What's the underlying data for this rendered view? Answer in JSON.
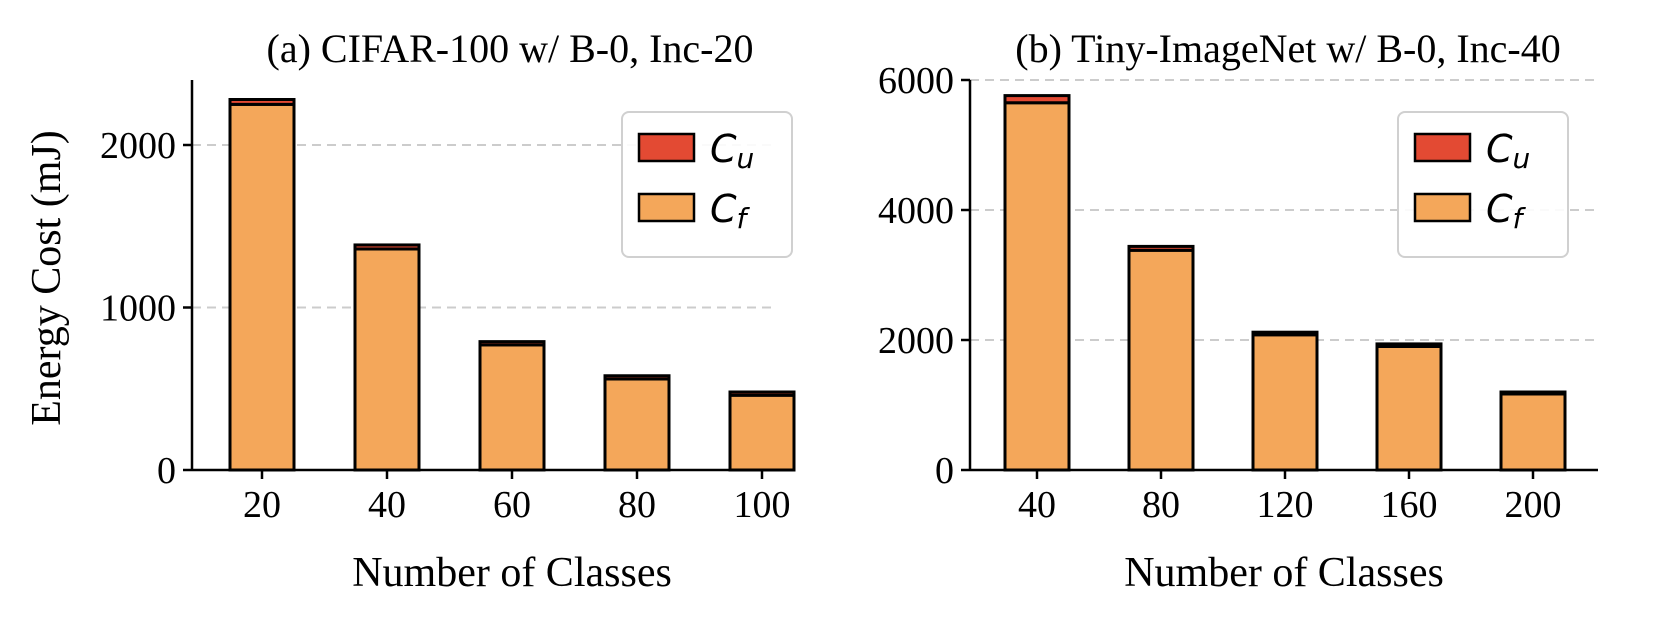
{
  "colors": {
    "Cu": "#e34a33",
    "Cf": "#f4a75a",
    "edge": "#000000",
    "grid": "#cccccc"
  },
  "legend": [
    {
      "key": "Cu",
      "main": "C",
      "sub": "u"
    },
    {
      "key": "Cf",
      "main": "C",
      "sub": "f"
    }
  ],
  "chart_data": [
    {
      "type": "bar",
      "stacked": true,
      "title": "(a) CIFAR-100 w/ B-0, Inc-20",
      "xlabel": "Number of Classes",
      "ylabel": "Energy Cost (mJ)",
      "categories": [
        "20",
        "40",
        "60",
        "80",
        "100"
      ],
      "ylim": [
        0,
        2400
      ],
      "yticks": [
        0,
        1000,
        2000
      ],
      "grid": "y-dashed",
      "legend_position": "top-right",
      "series": [
        {
          "name": "Cf",
          "values": [
            2250,
            1360,
            770,
            560,
            460
          ]
        },
        {
          "name": "Cu",
          "values": [
            30,
            25,
            20,
            20,
            20
          ]
        }
      ]
    },
    {
      "type": "bar",
      "stacked": true,
      "title": "(b) Tiny-ImageNet w/ B-0, Inc-40",
      "xlabel": "Number of Classes",
      "ylabel": "",
      "categories": [
        "40",
        "80",
        "120",
        "160",
        "200"
      ],
      "ylim": [
        0,
        6000
      ],
      "yticks": [
        0,
        2000,
        4000,
        6000
      ],
      "grid": "y-dashed",
      "legend_position": "top-right",
      "series": [
        {
          "name": "Cf",
          "values": [
            5650,
            3380,
            2080,
            1900,
            1170
          ]
        },
        {
          "name": "Cu",
          "values": [
            110,
            60,
            40,
            40,
            30
          ]
        }
      ]
    }
  ]
}
